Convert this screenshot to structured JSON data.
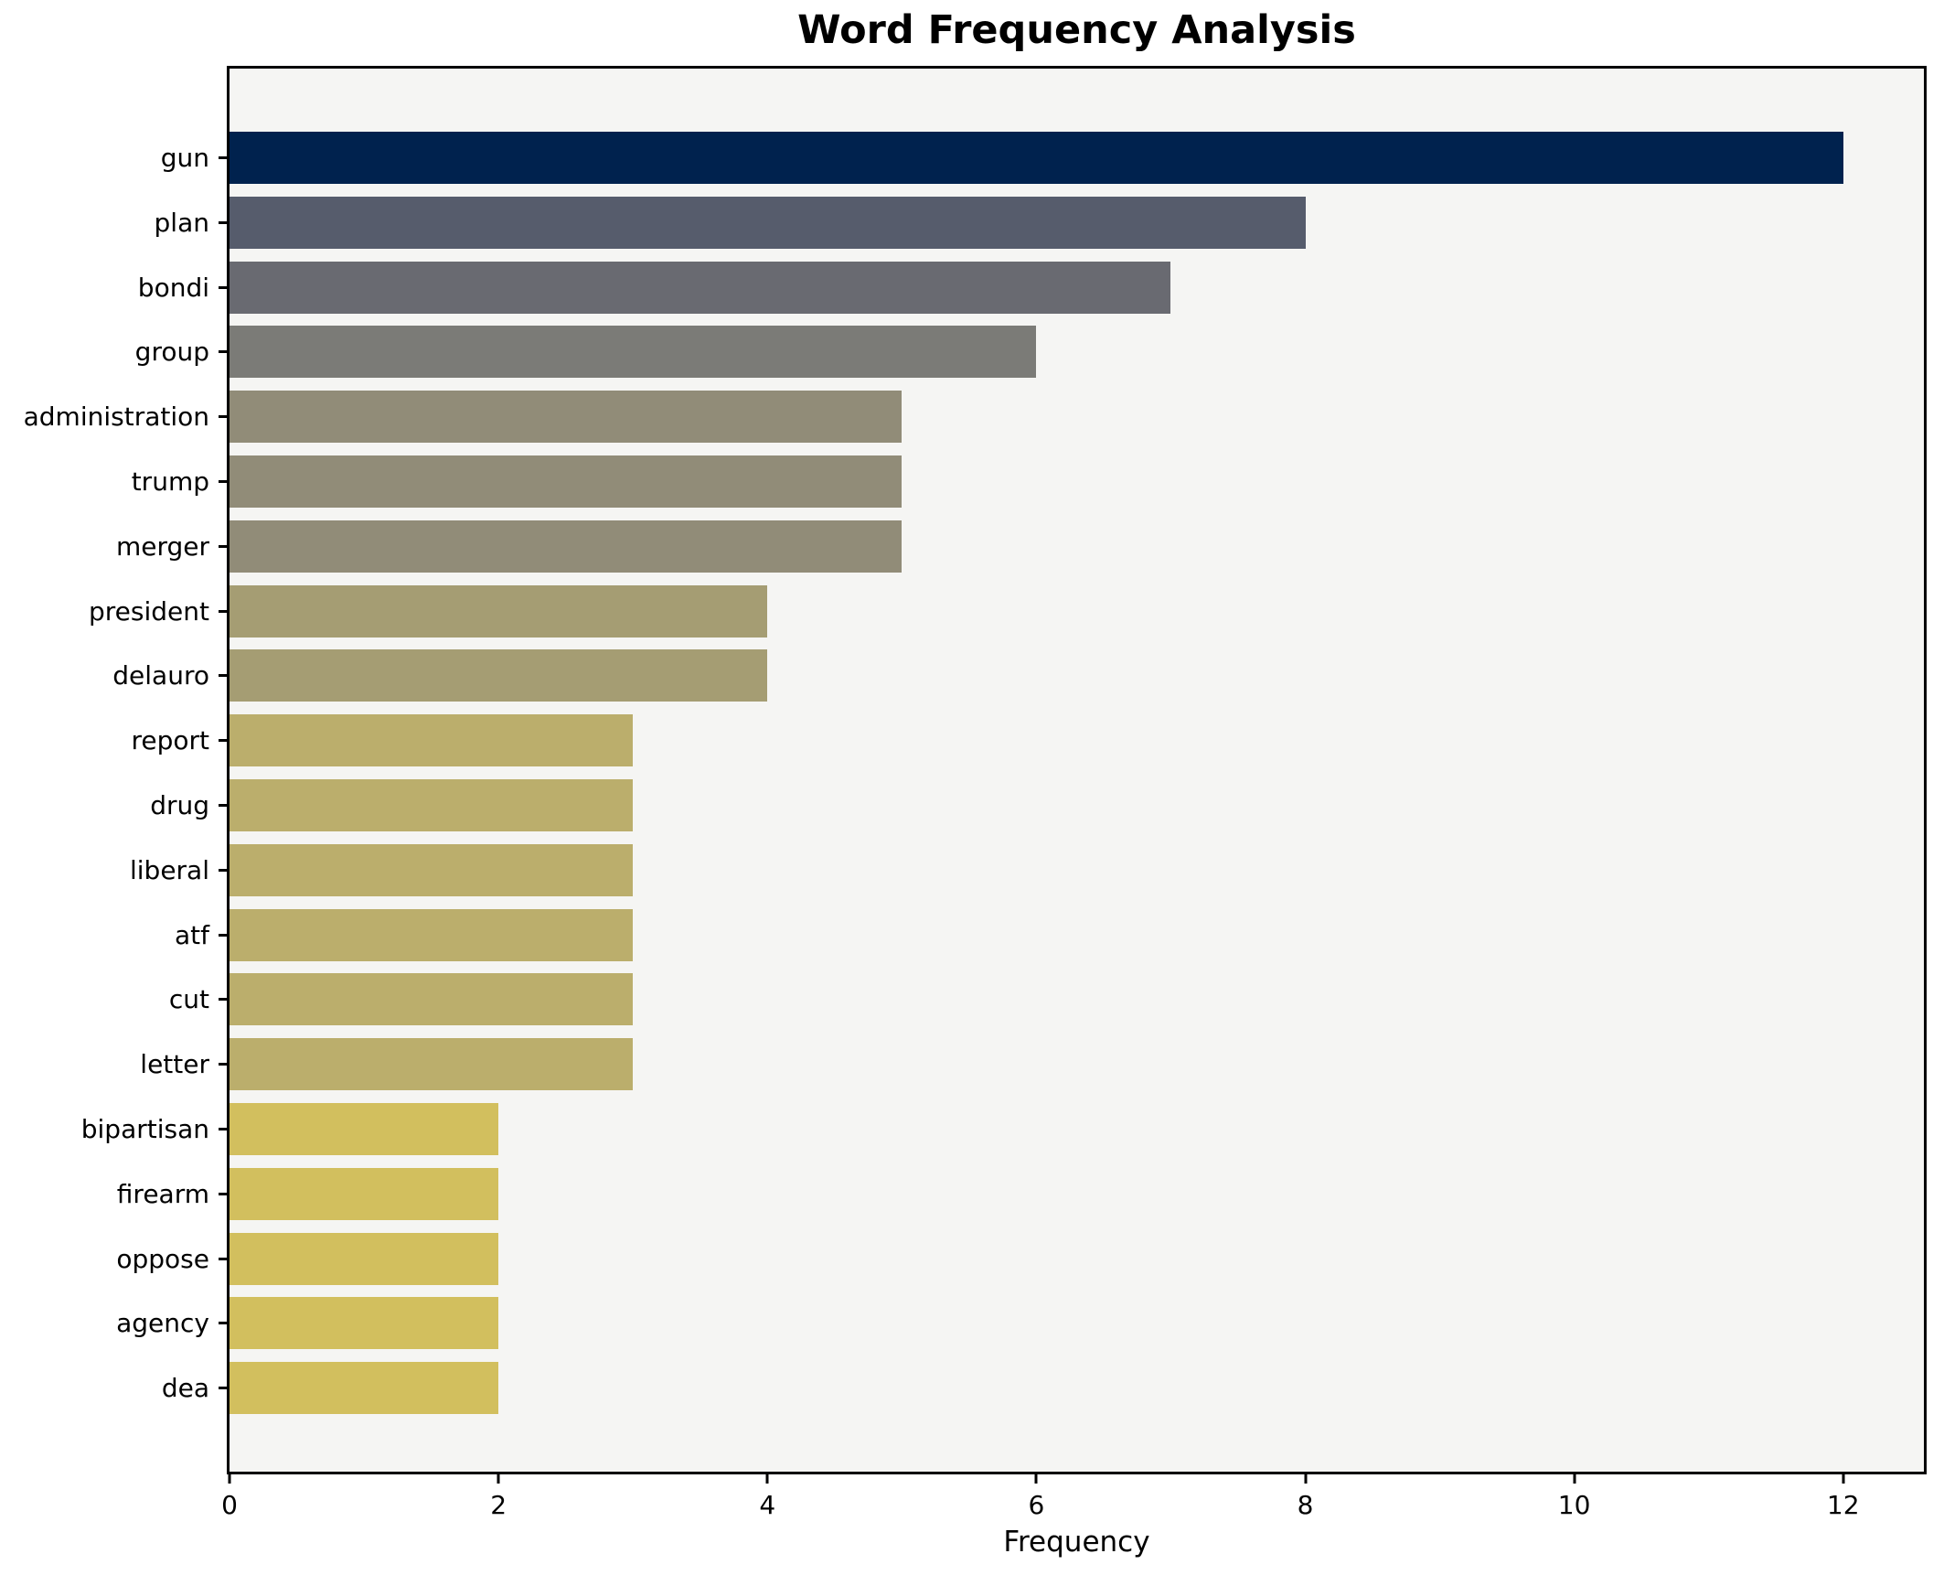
{
  "chart_data": {
    "type": "bar",
    "orientation": "horizontal",
    "title": "Word Frequency Analysis",
    "xlabel": "Frequency",
    "ylabel": "",
    "categories": [
      "gun",
      "plan",
      "bondi",
      "group",
      "administration",
      "trump",
      "merger",
      "president",
      "delauro",
      "report",
      "drug",
      "liberal",
      "atf",
      "cut",
      "letter",
      "bipartisan",
      "firearm",
      "oppose",
      "agency",
      "dea"
    ],
    "values": [
      12,
      8,
      7,
      6,
      5,
      5,
      5,
      4,
      4,
      3,
      3,
      3,
      3,
      3,
      3,
      2,
      2,
      2,
      2,
      2
    ],
    "bar_colors": [
      "#00224e",
      "#565c6c",
      "#696a71",
      "#7b7b77",
      "#918c78",
      "#918c78",
      "#918c78",
      "#a59d73",
      "#a59d73",
      "#bbae6c",
      "#bbae6c",
      "#bbae6c",
      "#bbae6c",
      "#bbae6c",
      "#bbae6c",
      "#d2bf5e",
      "#d2bf5e",
      "#d2bf5e",
      "#d2bf5e",
      "#d2bf5e"
    ],
    "xticks": [
      0,
      2,
      4,
      6,
      8,
      10,
      12
    ],
    "xlim": [
      0,
      12.6
    ],
    "grid": false,
    "legend": "none",
    "plot_background": "#f5f5f3",
    "figure_background": "#ffffff",
    "spine_color": "#000000"
  }
}
